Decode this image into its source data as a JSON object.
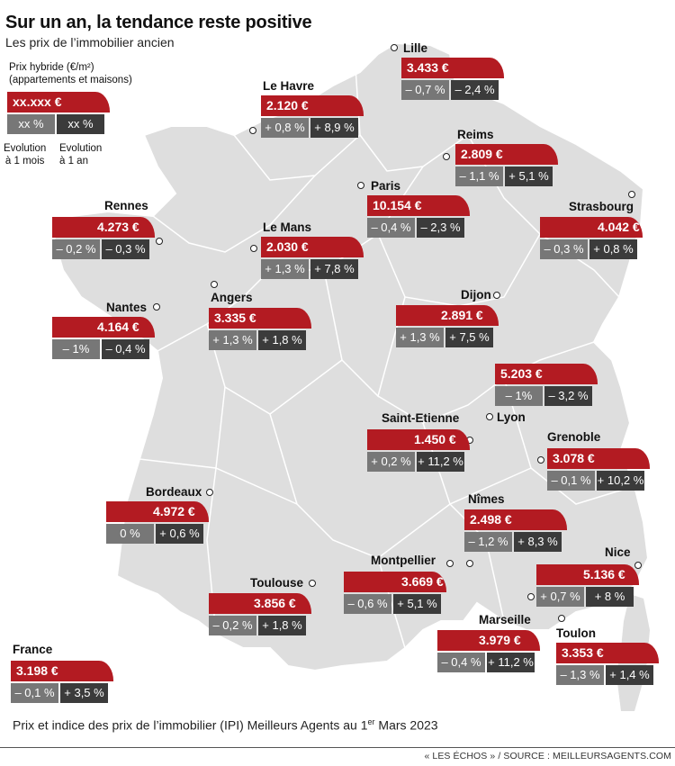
{
  "header": {
    "title": "Sur un an, la tendance reste positive",
    "subtitle": "Les prix de l’immobilier ancien"
  },
  "legend": {
    "label_line1": "Prix hybride (€/m²)",
    "label_line2": "(appartements et maisons)",
    "sample_price": "xx.xxx €",
    "sample_month": "xx %",
    "sample_year": "xx %",
    "evo_month_line1": "Evolution",
    "evo_month_line2": "à 1 mois",
    "evo_year_line1": "Evolution",
    "evo_year_line2": "à 1 an"
  },
  "cities": [
    {
      "name": "Lille",
      "price": "3.433 €",
      "month": "– 0,7 %",
      "year": "– 2,4 %"
    },
    {
      "name": "Le Havre",
      "price": "2.120 €",
      "month": "+ 0,8 %",
      "year": "+ 8,9 %"
    },
    {
      "name": "Reims",
      "price": "2.809 €",
      "month": "– 1,1 %",
      "year": "+ 5,1 %"
    },
    {
      "name": "Paris",
      "price": "10.154 €",
      "month": "– 0,4 %",
      "year": "– 2,3 %"
    },
    {
      "name": "Rennes",
      "price": "4.273 €",
      "month": "– 0,2 %",
      "year": "– 0,3 %"
    },
    {
      "name": "Le Mans",
      "price": "2.030 €",
      "month": "+ 1,3 %",
      "year": "+ 7,8 %"
    },
    {
      "name": "Strasbourg",
      "price": "4.042 €",
      "month": "– 0,3 %",
      "year": "+ 0,8 %"
    },
    {
      "name": "Nantes",
      "price": "4.164 €",
      "month": "– 1%",
      "year": "– 0,4 %"
    },
    {
      "name": "Angers",
      "price": "3.335 €",
      "month": "+ 1,3 %",
      "year": "+ 1,8 %"
    },
    {
      "name": "Dijon",
      "price": "2.891 €",
      "month": "+ 1,3 %",
      "year": "+ 7,5 %"
    },
    {
      "name": "Lyon",
      "price": "5.203 €",
      "month": "– 1%",
      "year": "– 3,2 %"
    },
    {
      "name": "Saint-Etienne",
      "price": "1.450 €",
      "month": "+ 0,2 %",
      "year": "+ 11,2 %"
    },
    {
      "name": "Grenoble",
      "price": "3.078 €",
      "month": "– 0,1 %",
      "year": "+ 10,2 %"
    },
    {
      "name": "Bordeaux",
      "price": "4.972 €",
      "month": "0 %",
      "year": "+ 0,6 %"
    },
    {
      "name": "Nîmes",
      "price": "2.498 €",
      "month": "– 1,2 %",
      "year": "+ 8,3 %"
    },
    {
      "name": "Nice",
      "price": "5.136 €",
      "month": "+ 0,7 %",
      "year": "+ 8 %"
    },
    {
      "name": "Montpellier",
      "price": "3.669 €",
      "month": "– 0,6 %",
      "year": "+ 5,1 %"
    },
    {
      "name": "Toulouse",
      "price": "3.856 €",
      "month": "– 0,2 %",
      "year": "+ 1,8 %"
    },
    {
      "name": "Marseille",
      "price": "3.979 €",
      "month": "– 0,4 %",
      "year": "+ 11,2 %"
    },
    {
      "name": "Toulon",
      "price": "3.353 €",
      "month": "– 1,3 %",
      "year": "+ 1,4 %"
    },
    {
      "name": "France",
      "price": "3.198 €",
      "month": "– 0,1 %",
      "year": "+ 3,5 %"
    }
  ],
  "footer": {
    "note_before_sup": "Prix et indice des prix de l’immobilier (IPI) Meilleurs Agents au 1",
    "note_sup": "er",
    "note_after_sup": " Mars 2023",
    "source": "« LES ÉCHOS » / SOURCE : MEILLEURSAGENTS.COM"
  },
  "colors": {
    "price_bg": "#b31b22",
    "month_bg": "#777777",
    "year_bg": "#3b3b3b",
    "map_fill": "#dedede",
    "border": "#ffffff"
  }
}
